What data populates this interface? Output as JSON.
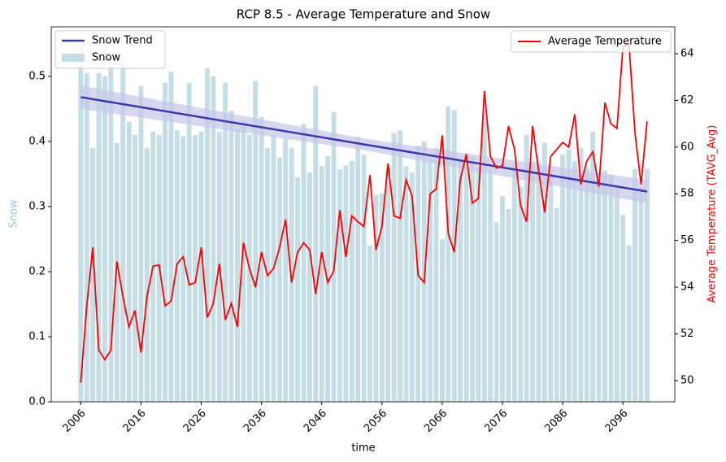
{
  "chart_data": {
    "type": "bar_line_dual",
    "title": "RCP 8.5 - Average Temperature and Snow",
    "xlabel": "time",
    "ylabel": "Snow",
    "y2label": "Average Temperature (TAVG_Avg)",
    "ylabel_color": "#87ceeb",
    "y2label_color": "#ff0000",
    "x": [
      2006,
      2007,
      2008,
      2009,
      2010,
      2011,
      2012,
      2013,
      2014,
      2015,
      2016,
      2017,
      2018,
      2019,
      2020,
      2021,
      2022,
      2023,
      2024,
      2025,
      2026,
      2027,
      2028,
      2029,
      2030,
      2031,
      2032,
      2033,
      2034,
      2035,
      2036,
      2037,
      2038,
      2039,
      2040,
      2041,
      2042,
      2043,
      2044,
      2045,
      2046,
      2047,
      2048,
      2049,
      2050,
      2051,
      2052,
      2053,
      2054,
      2055,
      2056,
      2057,
      2058,
      2059,
      2060,
      2061,
      2062,
      2063,
      2064,
      2065,
      2066,
      2067,
      2068,
      2069,
      2070,
      2071,
      2072,
      2073,
      2074,
      2075,
      2076,
      2077,
      2078,
      2079,
      2080,
      2081,
      2082,
      2083,
      2084,
      2085,
      2086,
      2087,
      2088,
      2089,
      2090,
      2091,
      2092,
      2093,
      2094,
      2095,
      2096,
      2097,
      2098,
      2099,
      2100
    ],
    "series": [
      {
        "name": "Snow",
        "color": "#c5dde5",
        "axis": "y",
        "values": [
          0.55,
          0.505,
          0.39,
          0.505,
          0.5,
          0.515,
          0.397,
          0.52,
          0.43,
          0.41,
          0.485,
          0.39,
          0.415,
          0.41,
          0.49,
          0.507,
          0.417,
          0.408,
          0.49,
          0.41,
          0.415,
          0.512,
          0.5,
          0.415,
          0.49,
          0.447,
          0.42,
          0.43,
          0.41,
          0.493,
          0.437,
          0.39,
          0.41,
          0.375,
          0.405,
          0.39,
          0.345,
          0.427,
          0.352,
          0.485,
          0.362,
          0.377,
          0.445,
          0.357,
          0.363,
          0.37,
          0.407,
          0.38,
          0.24,
          0.318,
          0.32,
          0.36,
          0.413,
          0.417,
          0.362,
          0.352,
          0.393,
          0.4,
          0.38,
          0.39,
          0.25,
          0.454,
          0.448,
          0.37,
          0.363,
          0.378,
          0.36,
          0.43,
          0.358,
          0.276,
          0.316,
          0.296,
          0.365,
          0.33,
          0.41,
          0.37,
          0.37,
          0.398,
          0.357,
          0.298,
          0.38,
          0.388,
          0.37,
          0.39,
          0.36,
          0.415,
          0.34,
          0.355,
          0.348,
          0.33,
          0.287,
          0.24,
          0.358,
          0.33,
          0.358
        ]
      },
      {
        "name": "Average Temperature",
        "color": "#ff0000",
        "axis": "y2",
        "values": [
          49.9,
          53.2,
          55.7,
          51.3,
          50.9,
          51.3,
          55.1,
          53.6,
          52.3,
          53.0,
          51.2,
          53.6,
          54.9,
          54.95,
          53.2,
          53.4,
          55.0,
          55.3,
          54.1,
          54.2,
          55.7,
          52.7,
          53.3,
          55.0,
          52.6,
          53.3,
          52.3,
          55.9,
          54.8,
          54.0,
          55.5,
          54.5,
          54.8,
          55.7,
          56.9,
          54.2,
          55.5,
          55.9,
          55.6,
          53.7,
          55.5,
          54.2,
          54.7,
          57.3,
          55.3,
          57.05,
          56.8,
          56.6,
          58.8,
          55.6,
          56.6,
          59.3,
          57.05,
          56.95,
          58.6,
          57.9,
          54.5,
          54.2,
          58.0,
          58.2,
          60.5,
          56.3,
          55.5,
          58.6,
          59.7,
          57.6,
          57.8,
          62.4,
          59.6,
          59.1,
          59.2,
          60.9,
          59.9,
          57.5,
          56.8,
          60.9,
          59.0,
          57.2,
          59.6,
          59.9,
          60.2,
          60.0,
          61.4,
          58.4,
          59.4,
          59.8,
          58.3,
          61.9,
          61.0,
          60.8,
          64.3,
          64.4,
          60.6,
          58.4,
          61.1
        ]
      }
    ],
    "trend": {
      "name": "Snow Trend",
      "color": "#3a3aaa",
      "band_color": "#c6c6ea",
      "x": [
        2006,
        2053,
        2100
      ],
      "values": [
        0.468,
        0.3955,
        0.323
      ],
      "lower": [
        0.45,
        0.3865,
        0.305
      ],
      "upper": [
        0.486,
        0.4045,
        0.341
      ]
    },
    "xlim": [
      2001.1,
      2104.6
    ],
    "xticks": [
      2006,
      2016,
      2026,
      2036,
      2046,
      2056,
      2066,
      2076,
      2086,
      2096
    ],
    "ylim": [
      0,
      0.576
    ],
    "yticks": [
      {
        "value": 0,
        "label": "0.0"
      },
      0.1,
      0.2,
      0.3,
      0.4,
      0.5
    ],
    "y2lim": [
      49.09,
      65.15
    ],
    "y2ticks": [
      50,
      52,
      54,
      56,
      58,
      60,
      62,
      64
    ],
    "legend": "upper left",
    "legend2": "upper right"
  }
}
